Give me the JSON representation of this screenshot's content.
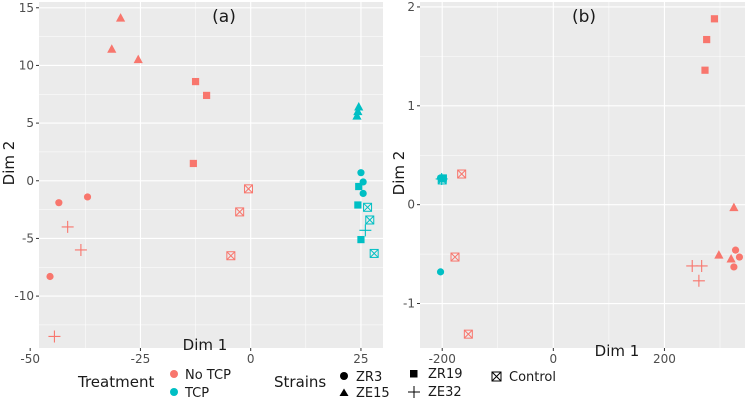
{
  "colors": {
    "no_tcp": "#F8766D",
    "tcp": "#00BFC4",
    "panel": "#EBEBEB",
    "grid": "#FFFFFF"
  },
  "chart_data": [
    {
      "type": "scatter",
      "panel_label": "(a)",
      "xlabel": "Dim 1",
      "ylabel": "Dim 2",
      "xlim": [
        -48,
        30
      ],
      "ylim": [
        -14.5,
        15.5
      ],
      "xticks": [
        -50,
        -25,
        0,
        25
      ],
      "xtick_labels": [
        "-50",
        "-25",
        "0",
        "25"
      ],
      "yticks": [
        -10,
        -5,
        0,
        5,
        10,
        15
      ],
      "ytick_labels": [
        "-10",
        "-5",
        "0",
        "5",
        "10",
        "15"
      ],
      "points": [
        {
          "x": -29.5,
          "y": 14.1,
          "treatment": "No TCP",
          "strain": "ZE15"
        },
        {
          "x": -31.5,
          "y": 11.4,
          "treatment": "No TCP",
          "strain": "ZE15"
        },
        {
          "x": -25.5,
          "y": 10.5,
          "treatment": "No TCP",
          "strain": "ZE15"
        },
        {
          "x": -12.5,
          "y": 8.6,
          "treatment": "No TCP",
          "strain": "ZR19"
        },
        {
          "x": -10.0,
          "y": 7.4,
          "treatment": "No TCP",
          "strain": "ZR19"
        },
        {
          "x": -13.0,
          "y": 1.5,
          "treatment": "No TCP",
          "strain": "ZR19"
        },
        {
          "x": -0.5,
          "y": -0.7,
          "treatment": "No TCP",
          "strain": "Control"
        },
        {
          "x": -2.5,
          "y": -2.7,
          "treatment": "No TCP",
          "strain": "Control"
        },
        {
          "x": -4.5,
          "y": -6.5,
          "treatment": "No TCP",
          "strain": "Control"
        },
        {
          "x": -37.0,
          "y": -1.4,
          "treatment": "No TCP",
          "strain": "ZR3"
        },
        {
          "x": -43.5,
          "y": -1.9,
          "treatment": "No TCP",
          "strain": "ZR3"
        },
        {
          "x": -45.5,
          "y": -8.3,
          "treatment": "No TCP",
          "strain": "ZR3"
        },
        {
          "x": -41.5,
          "y": -4.0,
          "treatment": "No TCP",
          "strain": "ZE32"
        },
        {
          "x": -38.5,
          "y": -6.0,
          "treatment": "No TCP",
          "strain": "ZE32"
        },
        {
          "x": -44.5,
          "y": -13.5,
          "treatment": "No TCP",
          "strain": "ZE32"
        },
        {
          "x": 24.5,
          "y": 6.4,
          "treatment": "TCP",
          "strain": "ZE15"
        },
        {
          "x": 24.3,
          "y": 6.0,
          "treatment": "TCP",
          "strain": "ZE15"
        },
        {
          "x": 24.1,
          "y": 5.6,
          "treatment": "TCP",
          "strain": "ZE15"
        },
        {
          "x": 25.0,
          "y": 0.7,
          "treatment": "TCP",
          "strain": "ZR3"
        },
        {
          "x": 25.5,
          "y": -0.1,
          "treatment": "TCP",
          "strain": "ZR3"
        },
        {
          "x": 25.5,
          "y": -1.1,
          "treatment": "TCP",
          "strain": "ZR3"
        },
        {
          "x": 24.5,
          "y": -0.5,
          "treatment": "TCP",
          "strain": "ZR19"
        },
        {
          "x": 24.3,
          "y": -2.1,
          "treatment": "TCP",
          "strain": "ZR19"
        },
        {
          "x": 25.0,
          "y": -5.1,
          "treatment": "TCP",
          "strain": "ZR19"
        },
        {
          "x": 26.5,
          "y": -2.3,
          "treatment": "TCP",
          "strain": "Control"
        },
        {
          "x": 27.0,
          "y": -3.4,
          "treatment": "TCP",
          "strain": "Control"
        },
        {
          "x": 28.0,
          "y": -6.3,
          "treatment": "TCP",
          "strain": "Control"
        },
        {
          "x": 26.0,
          "y": -4.3,
          "treatment": "TCP",
          "strain": "ZE32"
        }
      ]
    },
    {
      "type": "scatter",
      "panel_label": "(b)",
      "xlabel": "Dim 1",
      "ylabel": "Dim 2",
      "xlim": [
        -240,
        345
      ],
      "ylim": [
        -1.45,
        2.05
      ],
      "xticks": [
        -200,
        0,
        200
      ],
      "xtick_labels": [
        "-200",
        "0",
        "200"
      ],
      "yticks": [
        -1,
        0,
        1,
        2
      ],
      "ytick_labels": [
        "-1",
        "0",
        "1",
        "2"
      ],
      "points": [
        {
          "x": 290,
          "y": 1.88,
          "treatment": "No TCP",
          "strain": "ZR19"
        },
        {
          "x": 276,
          "y": 1.67,
          "treatment": "No TCP",
          "strain": "ZR19"
        },
        {
          "x": 273,
          "y": 1.36,
          "treatment": "No TCP",
          "strain": "ZR19"
        },
        {
          "x": -165,
          "y": 0.31,
          "treatment": "No TCP",
          "strain": "Control"
        },
        {
          "x": -177,
          "y": -0.53,
          "treatment": "No TCP",
          "strain": "Control"
        },
        {
          "x": -153,
          "y": -1.31,
          "treatment": "No TCP",
          "strain": "Control"
        },
        {
          "x": 325,
          "y": -0.03,
          "treatment": "No TCP",
          "strain": "ZE15"
        },
        {
          "x": 298,
          "y": -0.51,
          "treatment": "No TCP",
          "strain": "ZE15"
        },
        {
          "x": 320,
          "y": -0.55,
          "treatment": "No TCP",
          "strain": "ZE15"
        },
        {
          "x": 328,
          "y": -0.46,
          "treatment": "No TCP",
          "strain": "ZR3"
        },
        {
          "x": 335,
          "y": -0.53,
          "treatment": "No TCP",
          "strain": "ZR3"
        },
        {
          "x": 325,
          "y": -0.63,
          "treatment": "No TCP",
          "strain": "ZR3"
        },
        {
          "x": 250,
          "y": -0.62,
          "treatment": "No TCP",
          "strain": "ZE32"
        },
        {
          "x": 267,
          "y": -0.62,
          "treatment": "No TCP",
          "strain": "ZE32"
        },
        {
          "x": 262,
          "y": -0.77,
          "treatment": "No TCP",
          "strain": "ZE32"
        },
        {
          "x": -203,
          "y": 0.27,
          "treatment": "TCP",
          "strain": "ZR3"
        },
        {
          "x": -200,
          "y": 0.26,
          "treatment": "TCP",
          "strain": "ZE15"
        },
        {
          "x": -198,
          "y": 0.27,
          "treatment": "TCP",
          "strain": "ZR19"
        },
        {
          "x": -200,
          "y": 0.25,
          "treatment": "TCP",
          "strain": "Control"
        },
        {
          "x": -201,
          "y": 0.26,
          "treatment": "TCP",
          "strain": "ZE32"
        },
        {
          "x": -203,
          "y": -0.68,
          "treatment": "TCP",
          "strain": "ZR3"
        }
      ]
    }
  ],
  "legend": {
    "treatment_title": "Treatment",
    "treatment_items": [
      {
        "label": "No TCP",
        "key": "no_tcp"
      },
      {
        "label": "TCP",
        "key": "tcp"
      }
    ],
    "strains_title": "Strains",
    "strain_items": [
      {
        "label": "ZR3",
        "shape": "circle"
      },
      {
        "label": "ZE15",
        "shape": "triangle"
      },
      {
        "label": "ZR19",
        "shape": "square"
      },
      {
        "label": "ZE32",
        "shape": "plus"
      },
      {
        "label": "Control",
        "shape": "boxx"
      }
    ]
  }
}
